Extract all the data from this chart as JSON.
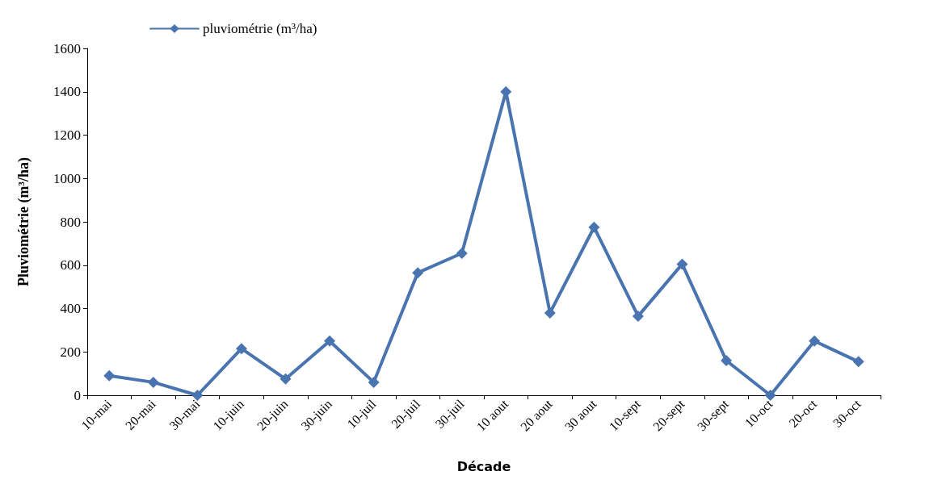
{
  "chart_data": {
    "type": "line",
    "xlabel": "Décade",
    "ylabel": "Pluviométrie (m³/ha)",
    "categories": [
      "10-mai",
      "20-mai",
      "30-mai",
      "10-juin",
      "20-juin",
      "30-juin",
      "10-juil",
      "20-juil",
      "30-juil",
      "10 aout",
      "20 aout",
      "30 aout",
      "10-sept",
      "20-sept",
      "30-sept",
      "10-oct",
      "20-oct",
      "30-oct"
    ],
    "series": [
      {
        "name": "pluviométrie (m³/ha)",
        "color": "#4a74b0",
        "values": [
          90,
          60,
          0,
          215,
          75,
          250,
          60,
          565,
          655,
          1400,
          380,
          775,
          365,
          605,
          160,
          0,
          250,
          155
        ]
      }
    ],
    "ylim": [
      0,
      1600
    ],
    "yticks": [
      0,
      200,
      400,
      600,
      800,
      1000,
      1200,
      1400,
      1600
    ],
    "grid": false,
    "legend": "top left",
    "marker": "diamond",
    "line_style": "solid"
  }
}
